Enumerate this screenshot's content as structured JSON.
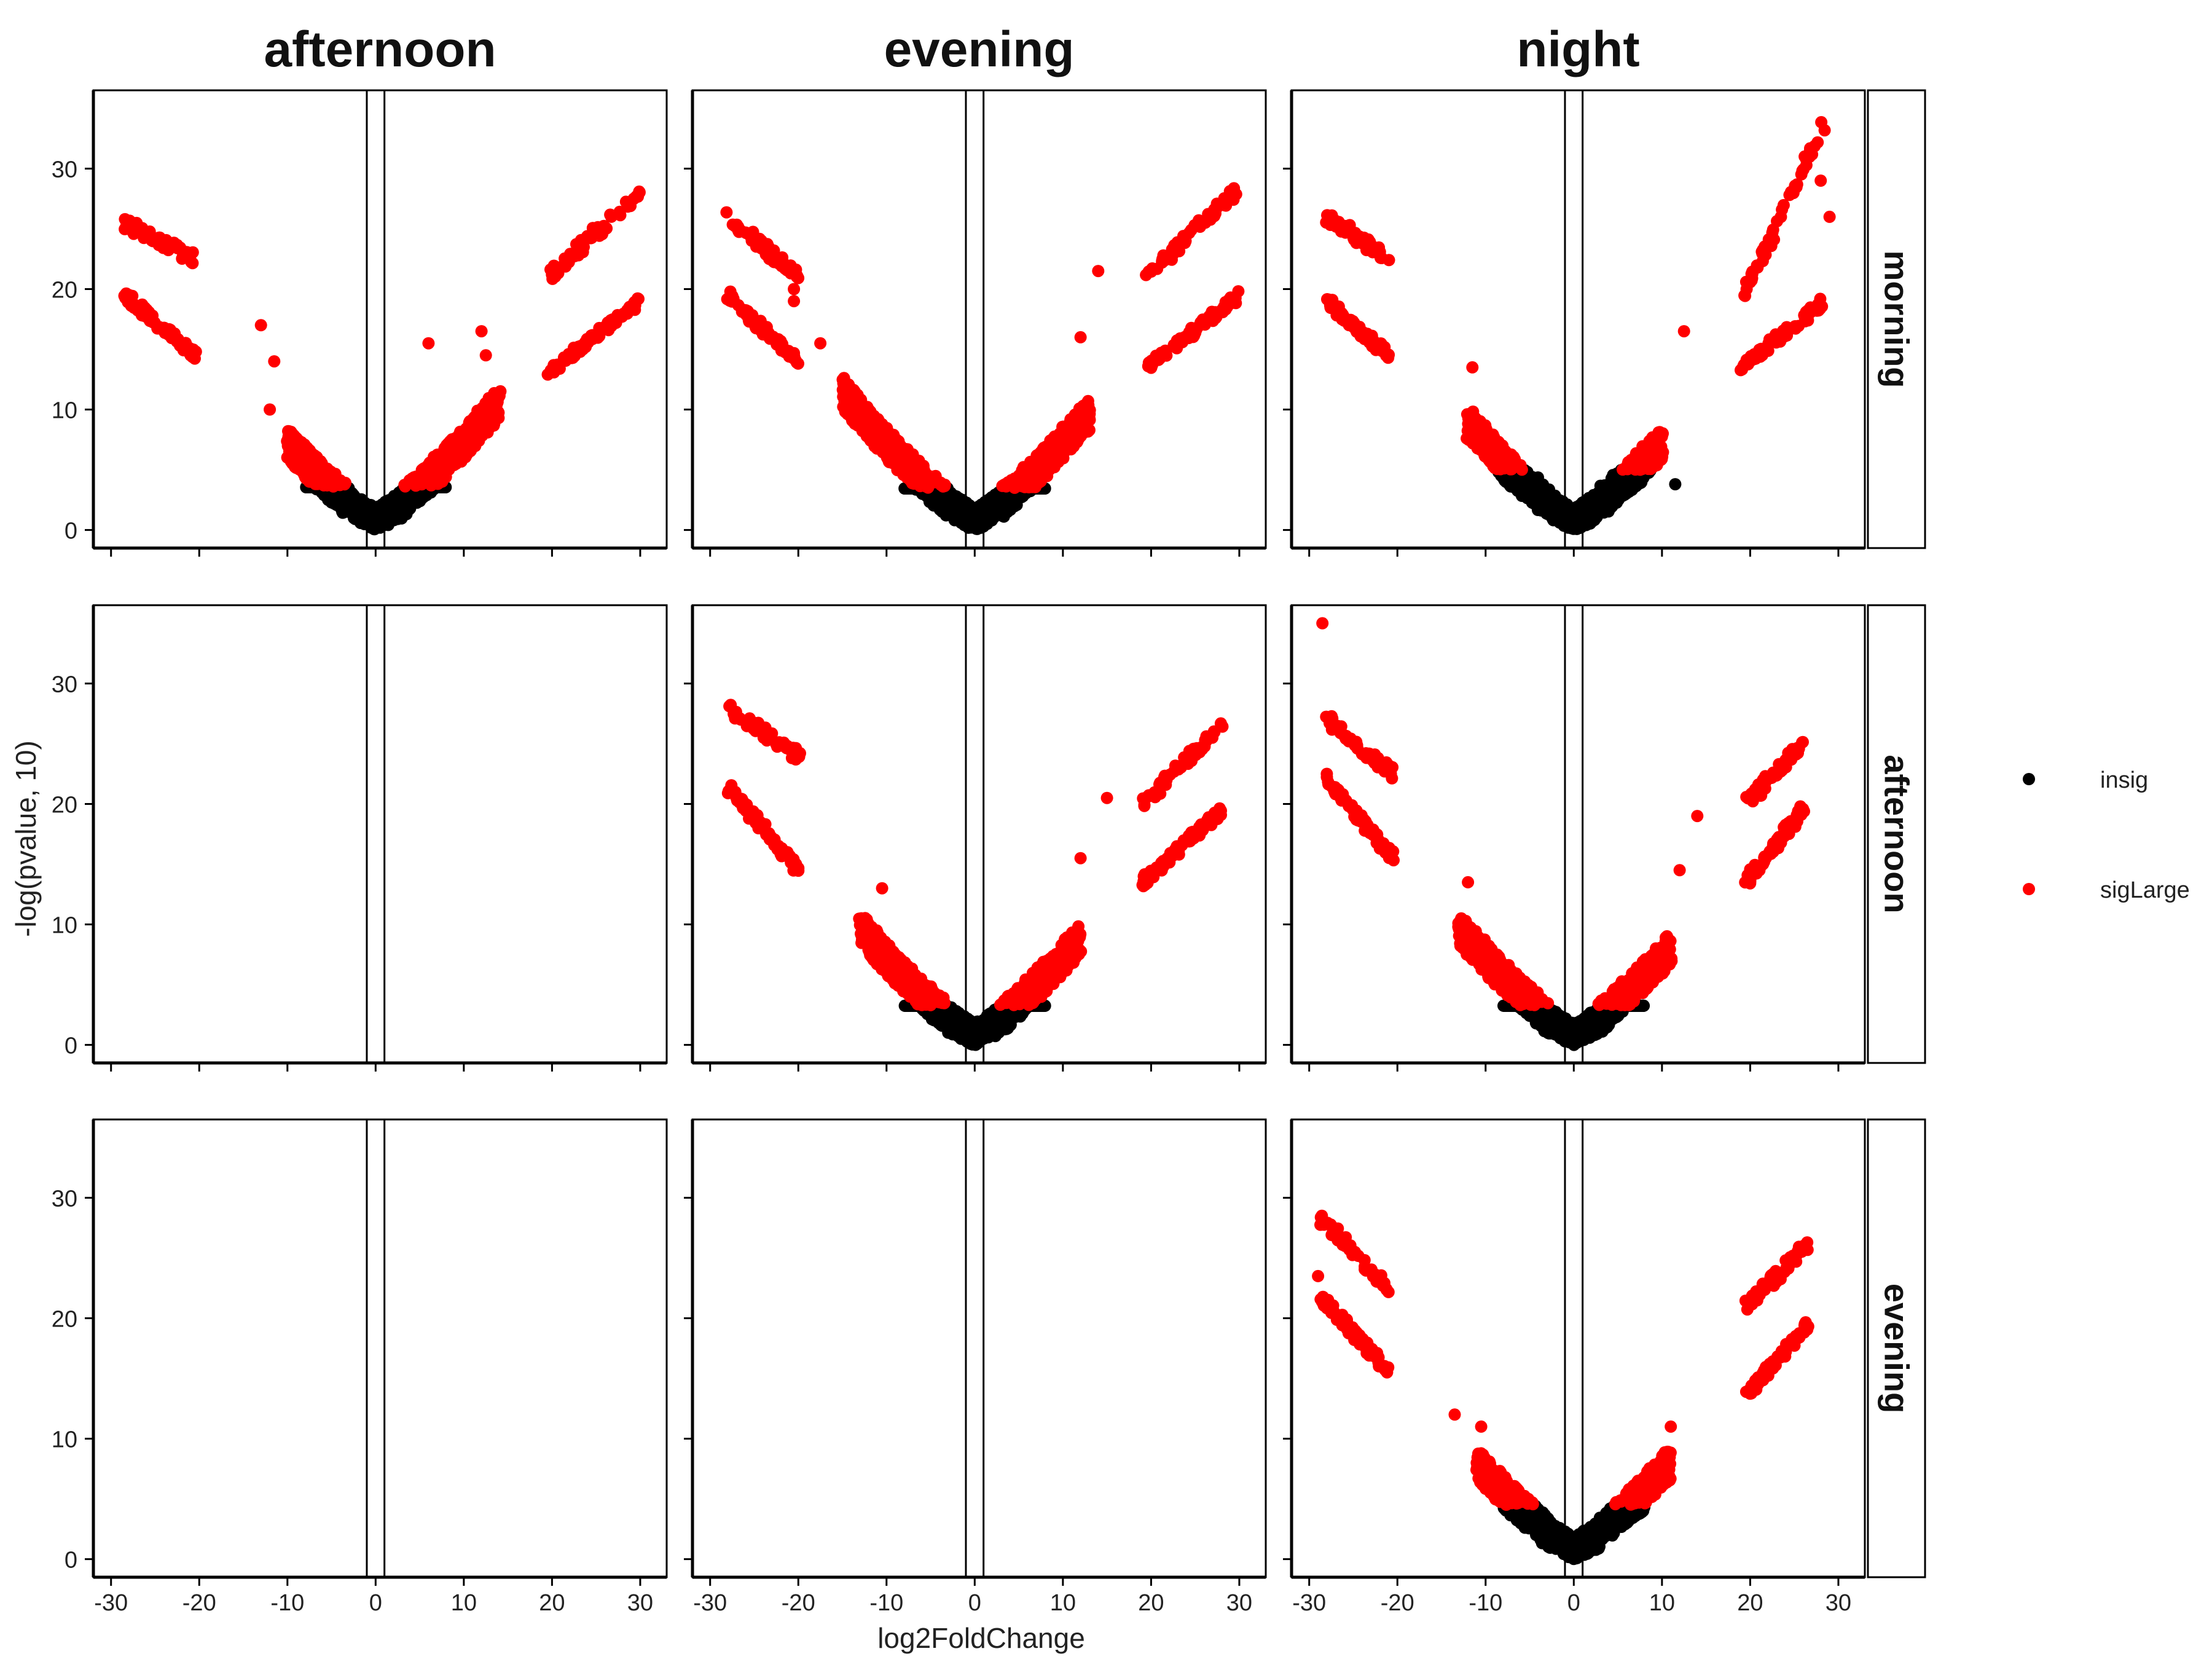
{
  "chart_data": {
    "type": "scatter",
    "xlabel": "log2FoldChange",
    "ylabel": "-log(pvalue, 10)",
    "xlim": [
      -32,
      33
    ],
    "ylim": [
      -1.5,
      36.5
    ],
    "x_ticks": [
      -30,
      -20,
      -10,
      0,
      10,
      20,
      30
    ],
    "y_ticks": [
      0,
      10,
      20,
      30
    ],
    "x_tick_labels": [
      "-30",
      "-20",
      "-10",
      "0",
      "10",
      "20",
      "30"
    ],
    "y_tick_labels": [
      "0",
      "10",
      "20",
      "30"
    ],
    "vlines": [
      -1,
      1
    ],
    "column_strips": [
      "afternoon",
      "evening",
      "night"
    ],
    "row_strips": [
      "morning",
      "afternoon",
      "evening"
    ],
    "legend": {
      "placement": "right",
      "entries": [
        {
          "label": "insig",
          "color": "#000000"
        },
        {
          "label": "sigLarge",
          "color": "#ff0000"
        }
      ]
    },
    "panels": [
      {
        "row": 0,
        "col": 0,
        "empty": false,
        "sig_threshold": 3.6,
        "left_max": 10,
        "right_max": 14,
        "left_cluster": {
          "x": [
            -28.5,
            -20.5
          ],
          "upper": [
            25.5,
            22.5
          ],
          "lower": [
            19.5,
            14.5
          ],
          "top_x": -27
        },
        "right_cluster": {
          "x": [
            19.5,
            30
          ],
          "upper": [
            21,
            28
          ],
          "lower": [
            13,
            19
          ],
          "top_x": 25
        },
        "outliers": [
          {
            "x": -13,
            "y": 17
          },
          {
            "x": -11.5,
            "y": 14
          },
          {
            "x": -12,
            "y": 10
          },
          {
            "x": 12,
            "y": 16.5
          },
          {
            "x": 12.5,
            "y": 14.5
          },
          {
            "x": 6,
            "y": 15.5
          }
        ]
      },
      {
        "row": 0,
        "col": 1,
        "empty": false,
        "sig_threshold": 3.5,
        "left_max": 15,
        "right_max": 13,
        "left_cluster": {
          "x": [
            -28,
            -20
          ],
          "upper": [
            26,
            21
          ],
          "lower": [
            19.5,
            14
          ],
          "top_x": -27
        },
        "right_cluster": {
          "x": [
            19.5,
            30
          ],
          "upper": [
            21,
            28.5
          ],
          "lower": [
            13.5,
            19.5
          ],
          "top_x": 30
        },
        "outliers": [
          {
            "x": -20.5,
            "y": 20
          },
          {
            "x": -20.5,
            "y": 19
          },
          {
            "x": -17.5,
            "y": 15.5
          },
          {
            "x": 14,
            "y": 21.5
          },
          {
            "x": 12,
            "y": 16
          }
        ]
      },
      {
        "row": 0,
        "col": 2,
        "empty": false,
        "sig_threshold": 5.0,
        "left_max": 12,
        "right_max": 10,
        "left_cluster": {
          "x": [
            -28,
            -21
          ],
          "upper": [
            26,
            22.5
          ],
          "lower": [
            19,
            14.5
          ],
          "top_x": -28
        },
        "right_cluster": {
          "x": [
            19,
            28.5
          ],
          "upper": [
            19,
            34
          ],
          "lower": [
            13.5,
            19
          ],
          "top_x": 28.5
        },
        "outliers": [
          {
            "x": -11.5,
            "y": 13.5
          },
          {
            "x": 12.5,
            "y": 16.5
          },
          {
            "x": 28,
            "y": 29
          },
          {
            "x": 29,
            "y": 26
          },
          {
            "x": 11.5,
            "y": 3.8
          }
        ]
      },
      {
        "row": 1,
        "col": 0,
        "empty": true
      },
      {
        "row": 1,
        "col": 1,
        "empty": false,
        "sig_threshold": 3.3,
        "left_max": 13,
        "right_max": 12,
        "left_cluster": {
          "x": [
            -28,
            -20
          ],
          "upper": [
            28,
            24
          ],
          "lower": [
            21.5,
            14.5
          ],
          "top_x": -28
        },
        "right_cluster": {
          "x": [
            19,
            28
          ],
          "upper": [
            20,
            26.5
          ],
          "lower": [
            13.5,
            19.5
          ],
          "top_x": 27.5
        },
        "outliers": [
          {
            "x": 15,
            "y": 20.5
          },
          {
            "x": 12,
            "y": 15.5
          },
          {
            "x": -10.5,
            "y": 13
          }
        ]
      },
      {
        "row": 1,
        "col": 2,
        "empty": false,
        "sig_threshold": 3.3,
        "left_max": 13,
        "right_max": 11,
        "left_cluster": {
          "x": [
            -28,
            -20.5
          ],
          "upper": [
            27,
            22.5
          ],
          "lower": [
            22,
            15.5
          ],
          "top_x": -28
        },
        "right_cluster": {
          "x": [
            19.5,
            26
          ],
          "upper": [
            20,
            25
          ],
          "lower": [
            13.5,
            19.5
          ],
          "top_x": 26
        },
        "outliers": [
          {
            "x": -28.5,
            "y": 35
          },
          {
            "x": -28,
            "y": 22.5
          },
          {
            "x": 14,
            "y": 19
          },
          {
            "x": 12,
            "y": 14.5
          },
          {
            "x": -12,
            "y": 13.5
          }
        ]
      },
      {
        "row": 2,
        "col": 0,
        "empty": true
      },
      {
        "row": 2,
        "col": 1,
        "empty": true
      },
      {
        "row": 2,
        "col": 2,
        "empty": false,
        "sig_threshold": 4.5,
        "left_max": 11,
        "right_max": 11,
        "left_cluster": {
          "x": [
            -29,
            -21
          ],
          "upper": [
            28.5,
            22.5
          ],
          "lower": [
            22,
            15.5
          ],
          "top_x": -28.5
        },
        "right_cluster": {
          "x": [
            19.5,
            26.5
          ],
          "upper": [
            21,
            26
          ],
          "lower": [
            13.5,
            19.5
          ],
          "top_x": 26.5
        },
        "outliers": [
          {
            "x": -13.5,
            "y": 12
          },
          {
            "x": -10.5,
            "y": 11
          },
          {
            "x": -29,
            "y": 23.5
          },
          {
            "x": 11,
            "y": 11
          },
          {
            "x": -11,
            "y": 8
          }
        ]
      }
    ]
  }
}
